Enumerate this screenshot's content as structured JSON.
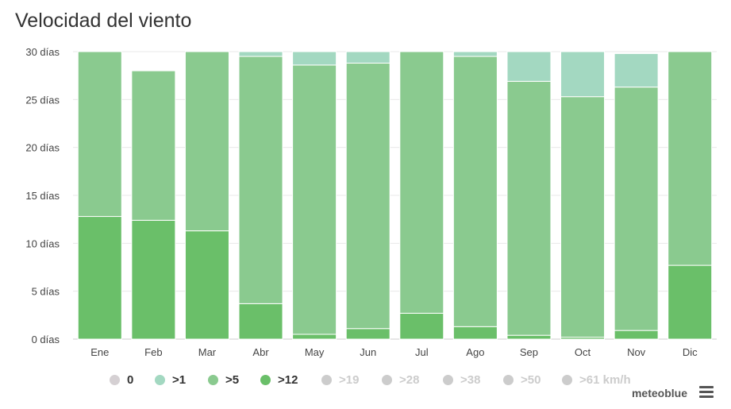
{
  "title": "Velocidad del viento",
  "brand": "meteoblue",
  "chart_data": {
    "type": "bar",
    "stacked": true,
    "title": "Velocidad del viento",
    "categories": [
      "Ene",
      "Feb",
      "Mar",
      "Abr",
      "May",
      "Jun",
      "Jul",
      "Ago",
      "Sep",
      "Oct",
      "Nov",
      "Dic"
    ],
    "ylim": [
      0,
      30
    ],
    "yticks": [
      "0 días",
      "5 días",
      "10 días",
      "15 días",
      "20 días",
      "25 días",
      "30 días"
    ],
    "ytick_values": [
      0,
      5,
      10,
      15,
      20,
      25,
      30
    ],
    "grid": true,
    "series": [
      {
        "name": ">12",
        "color": "#6abf69",
        "values": [
          12.8,
          12.4,
          11.3,
          3.7,
          0.5,
          1.1,
          2.7,
          1.3,
          0.4,
          0.2,
          0.9,
          7.7
        ]
      },
      {
        "name": ">5",
        "color": "#8aca8f",
        "values": [
          17.2,
          15.6,
          18.7,
          25.8,
          28.1,
          27.7,
          27.3,
          28.2,
          26.5,
          25.1,
          25.4,
          22.3
        ]
      },
      {
        "name": ">1",
        "color": "#a3d8c1",
        "values": [
          0,
          0,
          0,
          0.5,
          1.4,
          1.2,
          0,
          0.5,
          3.1,
          4.7,
          3.5,
          0
        ]
      },
      {
        "name": "0",
        "color": "#d5d0d3",
        "values": [
          0,
          0,
          0,
          0,
          0,
          0,
          0,
          0,
          0,
          0,
          0,
          0
        ]
      }
    ],
    "legend_position": "bottom"
  },
  "legend": [
    {
      "label": "0",
      "color": "#d5d0d3",
      "enabled": true
    },
    {
      "label": ">1",
      "color": "#a3d8c1",
      "enabled": true
    },
    {
      "label": ">5",
      "color": "#8aca8f",
      "enabled": true
    },
    {
      "label": ">12",
      "color": "#6abf69",
      "enabled": true
    },
    {
      "label": ">19",
      "color": "#cccccc",
      "enabled": false
    },
    {
      "label": ">28",
      "color": "#cccccc",
      "enabled": false
    },
    {
      "label": ">38",
      "color": "#cccccc",
      "enabled": false
    },
    {
      "label": ">50",
      "color": "#cccccc",
      "enabled": false
    },
    {
      "label": ">61 km/h",
      "color": "#cccccc",
      "enabled": false
    }
  ]
}
